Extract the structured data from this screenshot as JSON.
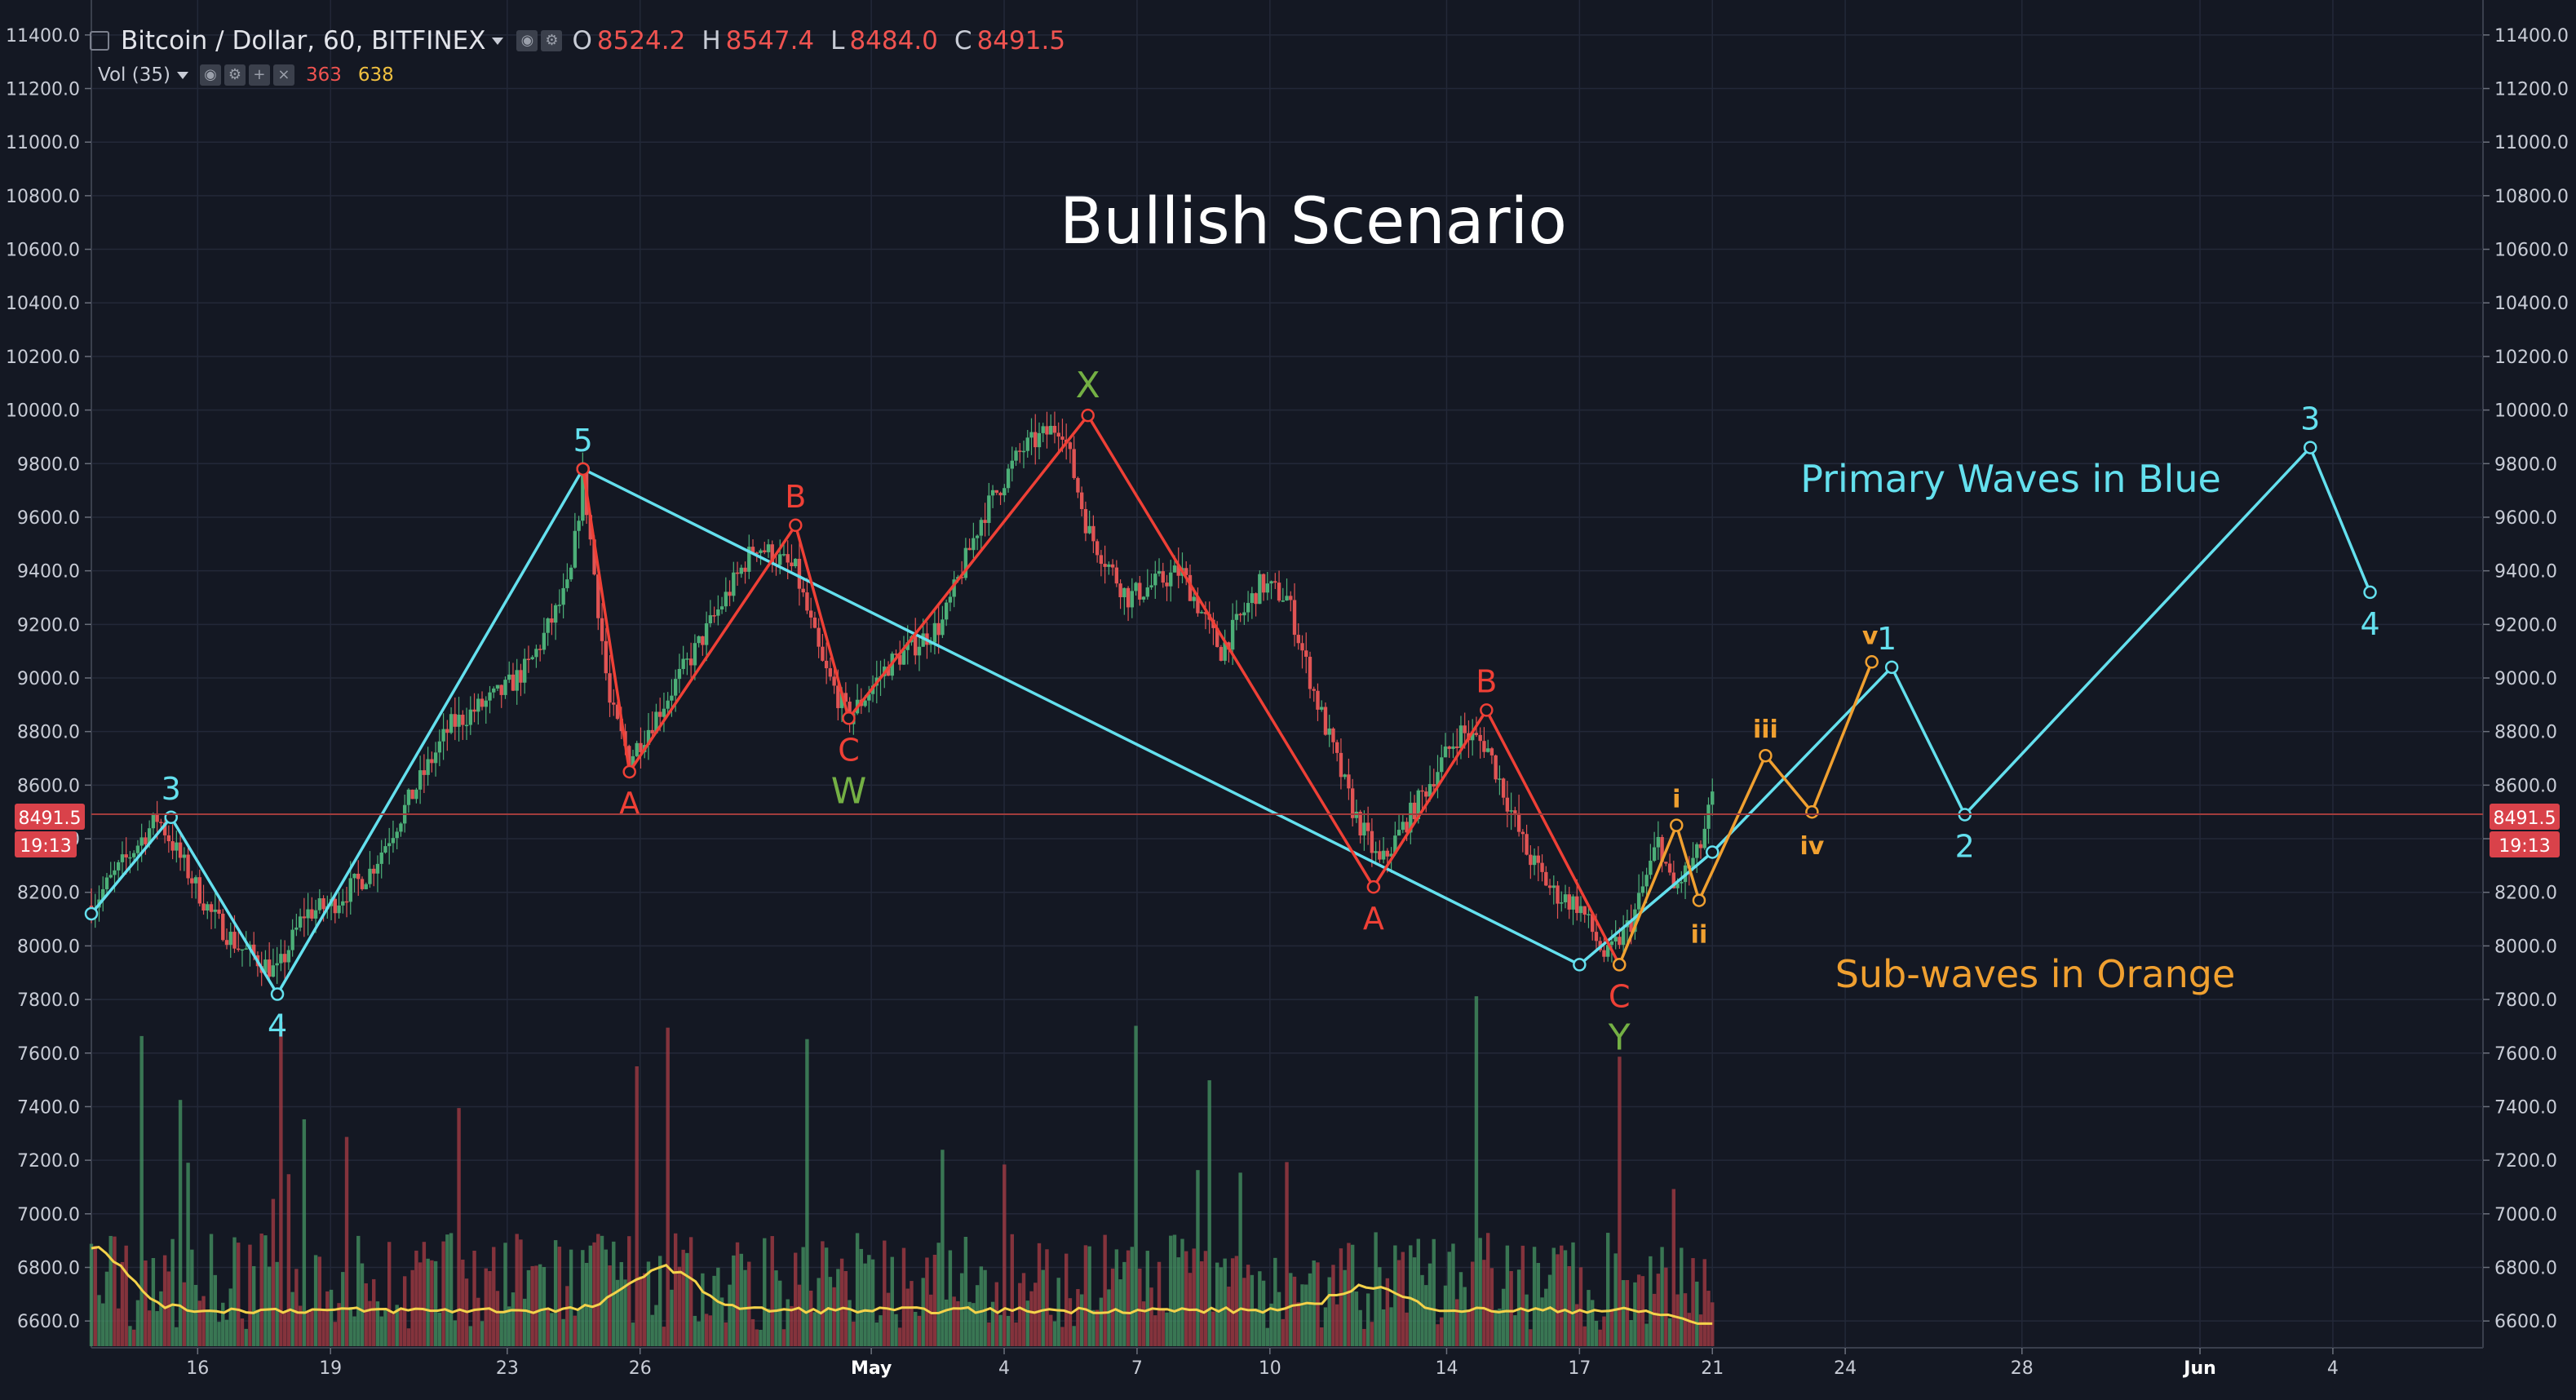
{
  "header": {
    "symbol_title": "Bitcoin / Dollar, 60, BITFINEX",
    "open_label": "O",
    "open": "8524.2",
    "high_label": "H",
    "high": "8547.4",
    "low_label": "L",
    "low": "8484.0",
    "close_label": "C",
    "close": "8491.5",
    "vol_label": "Vol (35)",
    "vol_value_1": "363",
    "vol_value_2": "638"
  },
  "price_tag": {
    "price": "8491.5",
    "countdown": "19:13"
  },
  "colors": {
    "background": "#141823",
    "grid": "#232838",
    "primary": "#64e0ee",
    "corrective": "#ef4036",
    "sub_wave": "#f0a030",
    "green_label": "#74b044",
    "title": "#ffffff",
    "price_line": "#a03c3c",
    "volume_ma": "#f4d24a"
  },
  "chart_data": {
    "type": "line",
    "title": "Bullish Scenario",
    "annotations": [
      "Primary Waves in Blue",
      "Sub-waves in Orange"
    ],
    "y_axis": {
      "ylim": [
        6500,
        11500
      ],
      "ticks": [
        "11400.0",
        "11200.0",
        "11000.0",
        "10800.0",
        "10600.0",
        "10400.0",
        "10200.0",
        "10000.0",
        "9800.0",
        "9600.0",
        "9400.0",
        "9200.0",
        "9000.0",
        "8800.0",
        "8600.0",
        "8400.0",
        "8200.0",
        "8000.0",
        "7800.0",
        "7600.0",
        "7400.0",
        "7200.0",
        "7000.0",
        "6800.0",
        "6600.0"
      ]
    },
    "x_axis": {
      "xlim": [
        0,
        180
      ],
      "ticks": [
        {
          "x": 8,
          "label": "16"
        },
        {
          "x": 18,
          "label": "19"
        },
        {
          "x": 31.3,
          "label": "23"
        },
        {
          "x": 41.3,
          "label": "26"
        },
        {
          "x": 58.7,
          "label": "May"
        },
        {
          "x": 68.7,
          "label": "4"
        },
        {
          "x": 78.7,
          "label": "7"
        },
        {
          "x": 88.7,
          "label": "10"
        },
        {
          "x": 102,
          "label": "14"
        },
        {
          "x": 112,
          "label": "17"
        },
        {
          "x": 122,
          "label": "21"
        },
        {
          "x": 132,
          "label": "24"
        },
        {
          "x": 145.3,
          "label": "28"
        },
        {
          "x": 158.7,
          "label": "Jun"
        },
        {
          "x": 168.7,
          "label": "4"
        }
      ]
    },
    "current_price": 8491.5,
    "candles_end_x": 122,
    "price_path": [
      [
        0,
        8150
      ],
      [
        5,
        8480
      ],
      [
        7,
        8300
      ],
      [
        9,
        8120
      ],
      [
        11,
        8000
      ],
      [
        14,
        7900
      ],
      [
        16,
        8120
      ],
      [
        18,
        8150
      ],
      [
        21,
        8280
      ],
      [
        24,
        8550
      ],
      [
        27,
        8820
      ],
      [
        31,
        8950
      ],
      [
        33,
        9050
      ],
      [
        36,
        9350
      ],
      [
        37,
        9750
      ],
      [
        39,
        8900
      ],
      [
        40.5,
        8700
      ],
      [
        43,
        8900
      ],
      [
        46,
        9150
      ],
      [
        50,
        9500
      ],
      [
        53,
        9400
      ],
      [
        55,
        9050
      ],
      [
        57,
        8850
      ],
      [
        60,
        9050
      ],
      [
        64,
        9200
      ],
      [
        67,
        9600
      ],
      [
        70,
        9850
      ],
      [
        73,
        9950
      ],
      [
        75,
        9550
      ],
      [
        78,
        9300
      ],
      [
        82,
        9400
      ],
      [
        85,
        9100
      ],
      [
        88,
        9350
      ],
      [
        90,
        9300
      ],
      [
        92,
        8950
      ],
      [
        95,
        8500
      ],
      [
        97,
        8300
      ],
      [
        100,
        8550
      ],
      [
        103,
        8800
      ],
      [
        105,
        8750
      ],
      [
        108,
        8350
      ],
      [
        110,
        8200
      ],
      [
        112,
        8150
      ],
      [
        114,
        7950
      ],
      [
        116,
        8100
      ],
      [
        118,
        8400
      ],
      [
        119,
        8200
      ],
      [
        121,
        8350
      ],
      [
        122,
        8550
      ]
    ],
    "series": [
      {
        "name": "primary",
        "color_key": "primary",
        "x": [
          0,
          6,
          14,
          37,
          112,
          122,
          135.5,
          141,
          167,
          171.5
        ],
        "y": [
          8120,
          8480,
          7820,
          9780,
          7930,
          8350,
          9040,
          8490,
          9860,
          9320
        ]
      },
      {
        "name": "corrective",
        "color_key": "corrective",
        "x": [
          37,
          40.5,
          53,
          57,
          75,
          96.5,
          105,
          115
        ],
        "y": [
          9780,
          8650,
          9570,
          8850,
          9980,
          8220,
          8880,
          7930
        ]
      },
      {
        "name": "sub_waves",
        "color_key": "sub_wave",
        "x": [
          115,
          119.3,
          121,
          126,
          129.5,
          134
        ],
        "y": [
          7930,
          8450,
          8170,
          8710,
          8500,
          9060
        ]
      }
    ],
    "wave_labels": [
      {
        "text": "3",
        "x": 6,
        "y": 8480,
        "pos": "above",
        "color_key": "primary"
      },
      {
        "text": "4",
        "x": 14,
        "y": 7820,
        "pos": "below",
        "color_key": "primary"
      },
      {
        "text": "5",
        "x": 37,
        "y": 9780,
        "pos": "above",
        "color_key": "primary"
      },
      {
        "text": "A",
        "x": 40.5,
        "y": 8650,
        "pos": "below",
        "color_key": "corrective"
      },
      {
        "text": "B",
        "x": 53,
        "y": 9570,
        "pos": "above",
        "color_key": "corrective"
      },
      {
        "text": "C",
        "x": 57,
        "y": 8850,
        "pos": "below",
        "color_key": "corrective"
      },
      {
        "text": "W",
        "x": 57,
        "y": 8850,
        "pos": "below2",
        "color_key": "green_label"
      },
      {
        "text": "X",
        "x": 75,
        "y": 9980,
        "pos": "above",
        "color_key": "green_label"
      },
      {
        "text": "A",
        "x": 96.5,
        "y": 8220,
        "pos": "below",
        "color_key": "corrective"
      },
      {
        "text": "B",
        "x": 105,
        "y": 8880,
        "pos": "above",
        "color_key": "corrective"
      },
      {
        "text": "C",
        "x": 115,
        "y": 7930,
        "pos": "below",
        "color_key": "corrective"
      },
      {
        "text": "Y",
        "x": 115,
        "y": 7930,
        "pos": "below2",
        "color_key": "green_label"
      },
      {
        "text": "i",
        "x": 119.3,
        "y": 8450,
        "pos": "above",
        "color_key": "sub_wave"
      },
      {
        "text": "ii",
        "x": 121,
        "y": 8170,
        "pos": "below",
        "color_key": "sub_wave"
      },
      {
        "text": "iii",
        "x": 126,
        "y": 8710,
        "pos": "above",
        "color_key": "sub_wave"
      },
      {
        "text": "iv",
        "x": 129.5,
        "y": 8500,
        "pos": "below",
        "color_key": "sub_wave"
      },
      {
        "text": "v",
        "x": 134,
        "y": 9060,
        "pos": "above",
        "color_key": "sub_wave"
      },
      {
        "text": "1",
        "x": 135.5,
        "y": 9040,
        "pos": "above",
        "color_key": "primary"
      },
      {
        "text": "2",
        "x": 141,
        "y": 8490,
        "pos": "below",
        "color_key": "primary"
      },
      {
        "text": "3",
        "x": 167,
        "y": 9860,
        "pos": "above",
        "color_key": "primary"
      },
      {
        "text": "4",
        "x": 171.5,
        "y": 9320,
        "pos": "below",
        "color_key": "primary"
      }
    ],
    "volume": {
      "ma_level": 6640,
      "ma_peaks": [
        [
          0,
          6880
        ],
        [
          43,
          6800
        ],
        [
          96,
          6730
        ],
        [
          122,
          6590
        ]
      ]
    }
  }
}
